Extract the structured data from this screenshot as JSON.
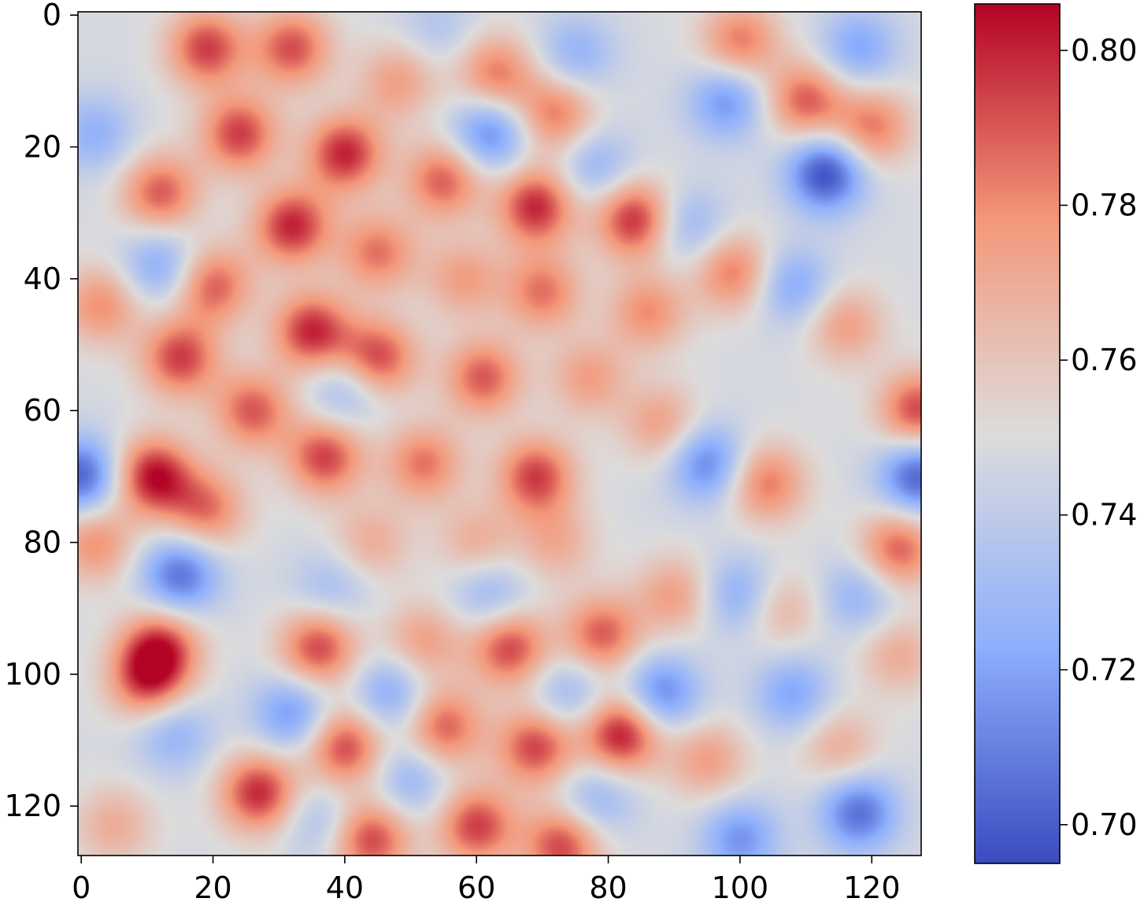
{
  "chart_data": {
    "type": "heatmap",
    "title": "",
    "xlabel": "",
    "ylabel": "",
    "colormap": "coolwarm",
    "grid_size": [
      128,
      128
    ],
    "xlim": [
      0,
      127
    ],
    "ylim": [
      127,
      0
    ],
    "x_ticks": [
      "0",
      "20",
      "40",
      "60",
      "80",
      "100",
      "120"
    ],
    "y_ticks": [
      "0",
      "20",
      "40",
      "60",
      "80",
      "100",
      "120"
    ],
    "x_tick_values": [
      0,
      20,
      40,
      60,
      80,
      100,
      120
    ],
    "y_tick_values": [
      0,
      20,
      40,
      60,
      80,
      100,
      120
    ],
    "colorbar": {
      "range": [
        0.695,
        0.806
      ],
      "ticks": [
        "0.70",
        "0.72",
        "0.74",
        "0.76",
        "0.78",
        "0.80"
      ],
      "tick_values": [
        0.7,
        0.72,
        0.74,
        0.76,
        0.78,
        0.8
      ],
      "low_color": "#3b4cc0",
      "mid_color": "#dddcdc",
      "high_color": "#b40426"
    },
    "baseline_value": 0.748,
    "spots": [
      {
        "x": 19,
        "y": 5,
        "v": 0.795
      },
      {
        "x": 32,
        "y": 5,
        "v": 0.792
      },
      {
        "x": 54,
        "y": 2,
        "v": 0.735
      },
      {
        "x": 63,
        "y": 9,
        "v": 0.785
      },
      {
        "x": 48,
        "y": 10,
        "v": 0.775
      },
      {
        "x": 72,
        "y": 15,
        "v": 0.785
      },
      {
        "x": 100,
        "y": 4,
        "v": 0.785
      },
      {
        "x": 110,
        "y": 13,
        "v": 0.79
      },
      {
        "x": 120,
        "y": 17,
        "v": 0.785
      },
      {
        "x": 113,
        "y": 24,
        "v": 0.695
      },
      {
        "x": 98,
        "y": 13,
        "v": 0.715
      },
      {
        "x": 118,
        "y": 5,
        "v": 0.72
      },
      {
        "x": 75,
        "y": 6,
        "v": 0.725
      },
      {
        "x": 62,
        "y": 18,
        "v": 0.71
      },
      {
        "x": 78,
        "y": 23,
        "v": 0.725
      },
      {
        "x": 24,
        "y": 18,
        "v": 0.795
      },
      {
        "x": 40,
        "y": 21,
        "v": 0.8
      },
      {
        "x": 12,
        "y": 27,
        "v": 0.79
      },
      {
        "x": 55,
        "y": 25,
        "v": 0.79
      },
      {
        "x": 69,
        "y": 29,
        "v": 0.8
      },
      {
        "x": 84,
        "y": 31,
        "v": 0.8
      },
      {
        "x": 32,
        "y": 32,
        "v": 0.8
      },
      {
        "x": 92,
        "y": 32,
        "v": 0.725
      },
      {
        "x": 2,
        "y": 18,
        "v": 0.725
      },
      {
        "x": 45,
        "y": 36,
        "v": 0.785
      },
      {
        "x": 20,
        "y": 41,
        "v": 0.79
      },
      {
        "x": 99,
        "y": 39,
        "v": 0.785
      },
      {
        "x": 86,
        "y": 45,
        "v": 0.78
      },
      {
        "x": 58,
        "y": 40,
        "v": 0.775
      },
      {
        "x": 70,
        "y": 42,
        "v": 0.785
      },
      {
        "x": 108,
        "y": 41,
        "v": 0.72
      },
      {
        "x": 12,
        "y": 38,
        "v": 0.72
      },
      {
        "x": 3,
        "y": 44,
        "v": 0.78
      },
      {
        "x": 116,
        "y": 47,
        "v": 0.775
      },
      {
        "x": 35,
        "y": 48,
        "v": 0.8
      },
      {
        "x": 45,
        "y": 52,
        "v": 0.795
      },
      {
        "x": 15,
        "y": 52,
        "v": 0.795
      },
      {
        "x": 61,
        "y": 55,
        "v": 0.79
      },
      {
        "x": 77,
        "y": 55,
        "v": 0.775
      },
      {
        "x": 26,
        "y": 60,
        "v": 0.79
      },
      {
        "x": 127,
        "y": 60,
        "v": 0.795
      },
      {
        "x": 37,
        "y": 67,
        "v": 0.795
      },
      {
        "x": 52,
        "y": 68,
        "v": 0.785
      },
      {
        "x": 69,
        "y": 70,
        "v": 0.795
      },
      {
        "x": 11,
        "y": 70,
        "v": 0.805
      },
      {
        "x": 19,
        "y": 75,
        "v": 0.785
      },
      {
        "x": 104,
        "y": 71,
        "v": 0.785
      },
      {
        "x": 0,
        "y": 70,
        "v": 0.7
      },
      {
        "x": 127,
        "y": 70,
        "v": 0.7
      },
      {
        "x": 95,
        "y": 68,
        "v": 0.71
      },
      {
        "x": 40,
        "y": 57,
        "v": 0.725
      },
      {
        "x": 124,
        "y": 81,
        "v": 0.79
      },
      {
        "x": 2,
        "y": 80,
        "v": 0.78
      },
      {
        "x": 44,
        "y": 80,
        "v": 0.77
      },
      {
        "x": 60,
        "y": 80,
        "v": 0.77
      },
      {
        "x": 72,
        "y": 80,
        "v": 0.77
      },
      {
        "x": 88,
        "y": 62,
        "v": 0.775
      },
      {
        "x": 90,
        "y": 88,
        "v": 0.775
      },
      {
        "x": 15,
        "y": 85,
        "v": 0.705
      },
      {
        "x": 38,
        "y": 87,
        "v": 0.73
      },
      {
        "x": 62,
        "y": 88,
        "v": 0.725
      },
      {
        "x": 12,
        "y": 96,
        "v": 0.795
      },
      {
        "x": 10,
        "y": 101,
        "v": 0.79
      },
      {
        "x": 36,
        "y": 96,
        "v": 0.795
      },
      {
        "x": 52,
        "y": 95,
        "v": 0.775
      },
      {
        "x": 65,
        "y": 96,
        "v": 0.795
      },
      {
        "x": 79,
        "y": 94,
        "v": 0.79
      },
      {
        "x": 106,
        "y": 90,
        "v": 0.77
      },
      {
        "x": 124,
        "y": 97,
        "v": 0.77
      },
      {
        "x": 100,
        "y": 88,
        "v": 0.72
      },
      {
        "x": 88,
        "y": 103,
        "v": 0.71
      },
      {
        "x": 47,
        "y": 103,
        "v": 0.72
      },
      {
        "x": 74,
        "y": 103,
        "v": 0.725
      },
      {
        "x": 32,
        "y": 106,
        "v": 0.715
      },
      {
        "x": 55,
        "y": 108,
        "v": 0.79
      },
      {
        "x": 40,
        "y": 111,
        "v": 0.795
      },
      {
        "x": 69,
        "y": 111,
        "v": 0.795
      },
      {
        "x": 82,
        "y": 109,
        "v": 0.805
      },
      {
        "x": 14,
        "y": 109,
        "v": 0.725
      },
      {
        "x": 95,
        "y": 113,
        "v": 0.775
      },
      {
        "x": 115,
        "y": 111,
        "v": 0.77
      },
      {
        "x": 27,
        "y": 118,
        "v": 0.8
      },
      {
        "x": 60,
        "y": 123,
        "v": 0.795
      },
      {
        "x": 44,
        "y": 125,
        "v": 0.795
      },
      {
        "x": 73,
        "y": 126,
        "v": 0.795
      },
      {
        "x": 118,
        "y": 121,
        "v": 0.705
      },
      {
        "x": 100,
        "y": 125,
        "v": 0.715
      },
      {
        "x": 50,
        "y": 116,
        "v": 0.725
      },
      {
        "x": 78,
        "y": 119,
        "v": 0.725
      },
      {
        "x": 36,
        "y": 122,
        "v": 0.73
      },
      {
        "x": 5,
        "y": 123,
        "v": 0.77
      },
      {
        "x": 108,
        "y": 103,
        "v": 0.72
      },
      {
        "x": 118,
        "y": 88,
        "v": 0.725
      }
    ]
  }
}
